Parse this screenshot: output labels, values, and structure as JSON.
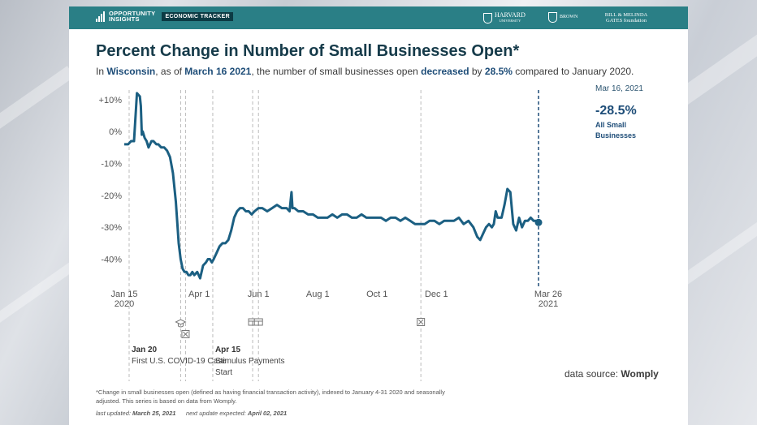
{
  "header": {
    "brand_line1": "OPPORTUNITY",
    "brand_line2": "INSIGHTS",
    "tracker_badge": "ECONOMIC TRACKER",
    "partners": {
      "harvard": "HARVARD",
      "harvard_sub": "UNIVERSITY",
      "brown": "BROWN",
      "gates_line1": "BILL & MELINDA",
      "gates_line2": "GATES foundation"
    }
  },
  "title": "Percent Change in Number of Small Businesses Open*",
  "subtitle": {
    "prefix": "In",
    "state": "Wisconsin",
    "as_of": ", as of",
    "date": "March 16 2021",
    "middle": ", the number of small businesses open",
    "direction": "decreased",
    "by": "by",
    "amount": "28.5%",
    "suffix": "compared to January 2020."
  },
  "callout": {
    "date": "Mar 16, 2021",
    "value": "-28.5%",
    "label": "All Small Businesses"
  },
  "chart_data": {
    "type": "line",
    "title": "Percent Change in Number of Small Businesses Open*",
    "xlabel": "",
    "ylabel": "",
    "ylim": [
      -48,
      13
    ],
    "yticks": [
      10,
      0,
      -10,
      -20,
      -30,
      -40
    ],
    "ytick_labels": [
      "+10%",
      "0%",
      "-10%",
      "-20%",
      "-30%",
      "-40%"
    ],
    "x_tick_dates": [
      "2020-01-15",
      "2020-04-01",
      "2020-06-01",
      "2020-08-01",
      "2020-10-01",
      "2020-12-01",
      "2021-03-26"
    ],
    "x_tick_labels": [
      "Jan 15\n2020",
      "Apr 1",
      "Jun 1",
      "Aug 1",
      "Oct 1",
      "Dec 1",
      "Mar 26\n2021"
    ],
    "x_range": [
      "2020-01-15",
      "2021-03-26"
    ],
    "grid": false,
    "series": [
      {
        "name": "All Small Businesses",
        "color": "#1b5f82",
        "x": [
          "2020-01-15",
          "2020-01-19",
          "2020-01-22",
          "2020-01-25",
          "2020-01-28",
          "2020-01-31",
          "2020-02-01",
          "2020-02-02",
          "2020-02-03",
          "2020-02-05",
          "2020-02-07",
          "2020-02-09",
          "2020-02-12",
          "2020-02-14",
          "2020-02-17",
          "2020-02-19",
          "2020-02-22",
          "2020-02-25",
          "2020-02-28",
          "2020-03-02",
          "2020-03-05",
          "2020-03-08",
          "2020-03-11",
          "2020-03-13",
          "2020-03-15",
          "2020-03-17",
          "2020-03-19",
          "2020-03-21",
          "2020-03-23",
          "2020-03-25",
          "2020-03-27",
          "2020-03-30",
          "2020-04-02",
          "2020-04-05",
          "2020-04-08",
          "2020-04-10",
          "2020-04-12",
          "2020-04-14",
          "2020-04-16",
          "2020-04-19",
          "2020-04-22",
          "2020-04-25",
          "2020-04-28",
          "2020-05-01",
          "2020-05-04",
          "2020-05-07",
          "2020-05-10",
          "2020-05-13",
          "2020-05-16",
          "2020-05-19",
          "2020-05-22",
          "2020-05-25",
          "2020-05-28",
          "2020-06-01",
          "2020-06-05",
          "2020-06-10",
          "2020-06-15",
          "2020-06-20",
          "2020-06-25",
          "2020-06-30",
          "2020-07-03",
          "2020-07-05",
          "2020-07-06",
          "2020-07-08",
          "2020-07-12",
          "2020-07-17",
          "2020-07-22",
          "2020-07-27",
          "2020-08-01",
          "2020-08-06",
          "2020-08-11",
          "2020-08-16",
          "2020-08-21",
          "2020-08-26",
          "2020-08-31",
          "2020-09-05",
          "2020-09-10",
          "2020-09-15",
          "2020-09-20",
          "2020-09-25",
          "2020-09-30",
          "2020-10-05",
          "2020-10-10",
          "2020-10-15",
          "2020-10-20",
          "2020-10-25",
          "2020-10-30",
          "2020-11-04",
          "2020-11-09",
          "2020-11-14",
          "2020-11-19",
          "2020-11-24",
          "2020-11-29",
          "2020-12-04",
          "2020-12-09",
          "2020-12-14",
          "2020-12-19",
          "2020-12-24",
          "2020-12-29",
          "2021-01-03",
          "2021-01-08",
          "2021-01-12",
          "2021-01-15",
          "2021-01-18",
          "2021-01-21",
          "2021-01-24",
          "2021-01-27",
          "2021-01-29",
          "2021-01-31",
          "2021-02-02",
          "2021-02-04",
          "2021-02-06",
          "2021-02-09",
          "2021-02-12",
          "2021-02-15",
          "2021-02-18",
          "2021-02-21",
          "2021-02-24",
          "2021-02-27",
          "2021-03-02",
          "2021-03-05",
          "2021-03-08",
          "2021-03-11",
          "2021-03-14",
          "2021-03-16"
        ],
        "y": [
          -4,
          -4,
          -3,
          -3,
          12,
          11,
          8,
          -1,
          0,
          -2,
          -3,
          -5,
          -3,
          -3,
          -4,
          -4,
          -5,
          -5,
          -6,
          -8,
          -13,
          -22,
          -35,
          -40,
          -43,
          -44,
          -44,
          -45,
          -45,
          -44,
          -45,
          -44,
          -46,
          -42,
          -41,
          -40,
          -40,
          -41,
          -40,
          -38,
          -36,
          -35,
          -35,
          -34,
          -31,
          -27,
          -25,
          -24,
          -24,
          -25,
          -25,
          -26,
          -25,
          -24,
          -24,
          -25,
          -24,
          -23,
          -24,
          -24,
          -25,
          -19,
          -24,
          -24,
          -25,
          -25,
          -26,
          -26,
          -27,
          -27,
          -27,
          -26,
          -27,
          -26,
          -26,
          -27,
          -27,
          -26,
          -27,
          -27,
          -27,
          -27,
          -28,
          -27,
          -27,
          -28,
          -27,
          -28,
          -29,
          -29,
          -29,
          -28,
          -28,
          -29,
          -28,
          -28,
          -28,
          -27,
          -29,
          -28,
          -30,
          -33,
          -34,
          -32,
          -30,
          -29,
          -30,
          -29,
          -25,
          -27,
          -27,
          -27,
          -23,
          -18,
          -19,
          -29,
          -31,
          -27,
          -30,
          -28,
          -28,
          -27,
          -28,
          -28,
          -28.5
        ]
      }
    ],
    "end_point": {
      "x": "2021-03-16",
      "y": -28.5
    },
    "event_lines": [
      "2020-01-20",
      "2020-03-13",
      "2020-03-18",
      "2020-04-15",
      "2020-05-26",
      "2020-06-01",
      "2020-11-15",
      "2021-03-16"
    ],
    "events": [
      {
        "date": "Jan 20",
        "label": "First U.S. COVID-19 Case"
      },
      {
        "date": "Apr 15",
        "label": "Stimulus Payments Start"
      }
    ]
  },
  "source": {
    "prefix": "data source:",
    "name": "Womply"
  },
  "footnote": "*Change in small businesses open (defined as having financial transaction activity), indexed to January 4-31 2020 and seasonally adjusted. This series is based on data from Womply.",
  "updated": {
    "last_label": "last updated:",
    "last_date": "March 25, 2021",
    "next_label": "next update expected:",
    "next_date": "April 02, 2021"
  }
}
